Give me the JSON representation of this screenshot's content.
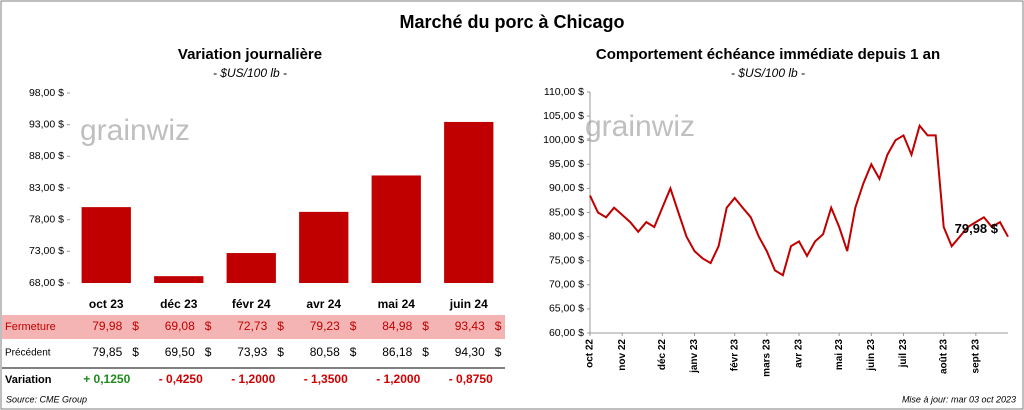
{
  "title": "Marché du porc à Chicago",
  "watermark": "grainwiz",
  "chart_data": [
    {
      "type": "bar",
      "title": "Variation journalière",
      "subtitle": "- $US/100 lb -",
      "categories": [
        "oct 23",
        "déc 23",
        "févr 24",
        "avr 24",
        "mai 24",
        "juin 24"
      ],
      "values": [
        79.98,
        69.08,
        72.73,
        79.23,
        84.98,
        93.43
      ],
      "value_labels": [
        "79,98",
        "69,08",
        "72,73",
        "79,23",
        "84,98",
        "93,43"
      ],
      "color": "#c00000",
      "ylim": [
        68,
        98
      ],
      "yticks": [
        {
          "value": 68,
          "label": "68,00 $"
        },
        {
          "value": 73,
          "label": "73,00 $"
        },
        {
          "value": 78,
          "label": "78,00 $"
        },
        {
          "value": 83,
          "label": "83,00 $"
        },
        {
          "value": 88,
          "label": "88,00 $"
        },
        {
          "value": 93,
          "label": "93,00 $"
        },
        {
          "value": 98,
          "label": "98,00 $"
        }
      ],
      "grid": false
    },
    {
      "type": "line",
      "title": "Comportement échéance immédiate depuis 1 an",
      "subtitle": "- $US/100 lb -",
      "categories": [
        "oct 22",
        null,
        null,
        null,
        "nov 22",
        null,
        null,
        null,
        null,
        "déc 22",
        null,
        null,
        null,
        "janv 23",
        null,
        null,
        null,
        null,
        "févr 23",
        null,
        null,
        null,
        "mars 23",
        null,
        null,
        null,
        "avr 23",
        null,
        null,
        null,
        null,
        "mai 23",
        null,
        null,
        null,
        "juin 23",
        null,
        null,
        null,
        "juil 23",
        null,
        null,
        null,
        null,
        "août 23",
        null,
        null,
        null,
        "sept 23",
        null,
        null,
        null,
        null
      ],
      "values": [
        88.5,
        85,
        84,
        86,
        84.5,
        83,
        81,
        83,
        82,
        86,
        90,
        85,
        80,
        77,
        75.5,
        74.5,
        78,
        86,
        88,
        86,
        84,
        80,
        77,
        73,
        72,
        78,
        79,
        76,
        79,
        80.5,
        86,
        82,
        77,
        86,
        91,
        95,
        92,
        97,
        100,
        101,
        97,
        103,
        101,
        101,
        82,
        78,
        80,
        82,
        83,
        84,
        82,
        83,
        79.98
      ],
      "end_label": "79,98 $",
      "color": "#c00000",
      "ylim": [
        60,
        110
      ],
      "yticks": [
        {
          "value": 60,
          "label": "60,00 $"
        },
        {
          "value": 65,
          "label": "65,00 $"
        },
        {
          "value": 70,
          "label": "70,00 $"
        },
        {
          "value": 75,
          "label": "75,00 $"
        },
        {
          "value": 80,
          "label": "80,00 $"
        },
        {
          "value": 85,
          "label": "85,00 $"
        },
        {
          "value": 90,
          "label": "90,00 $"
        },
        {
          "value": 95,
          "label": "95,00 $"
        },
        {
          "value": 100,
          "label": "100,00 $"
        },
        {
          "value": 105,
          "label": "105,00 $"
        },
        {
          "value": 110,
          "label": "110,00 $"
        }
      ],
      "grid": false
    }
  ],
  "table": {
    "row_labels": [
      "Fermeture",
      "Précédent",
      "Variation"
    ],
    "currency": "$",
    "previous": [
      "79,85",
      "69,50",
      "73,93",
      "80,58",
      "86,18",
      "94,30"
    ],
    "variation": [
      "+ 0,1250",
      "- 0,4250",
      "- 1,2000",
      "- 1,3500",
      "- 1,2000",
      "- 0,8750"
    ],
    "variation_colors": [
      "#1e8b1e",
      "#d00000",
      "#d00000",
      "#d00000",
      "#d00000",
      "#d00000"
    ]
  },
  "footer": {
    "source": "Source: CME Group",
    "updated": "Mise à jour: mar 03 oct 2023"
  }
}
